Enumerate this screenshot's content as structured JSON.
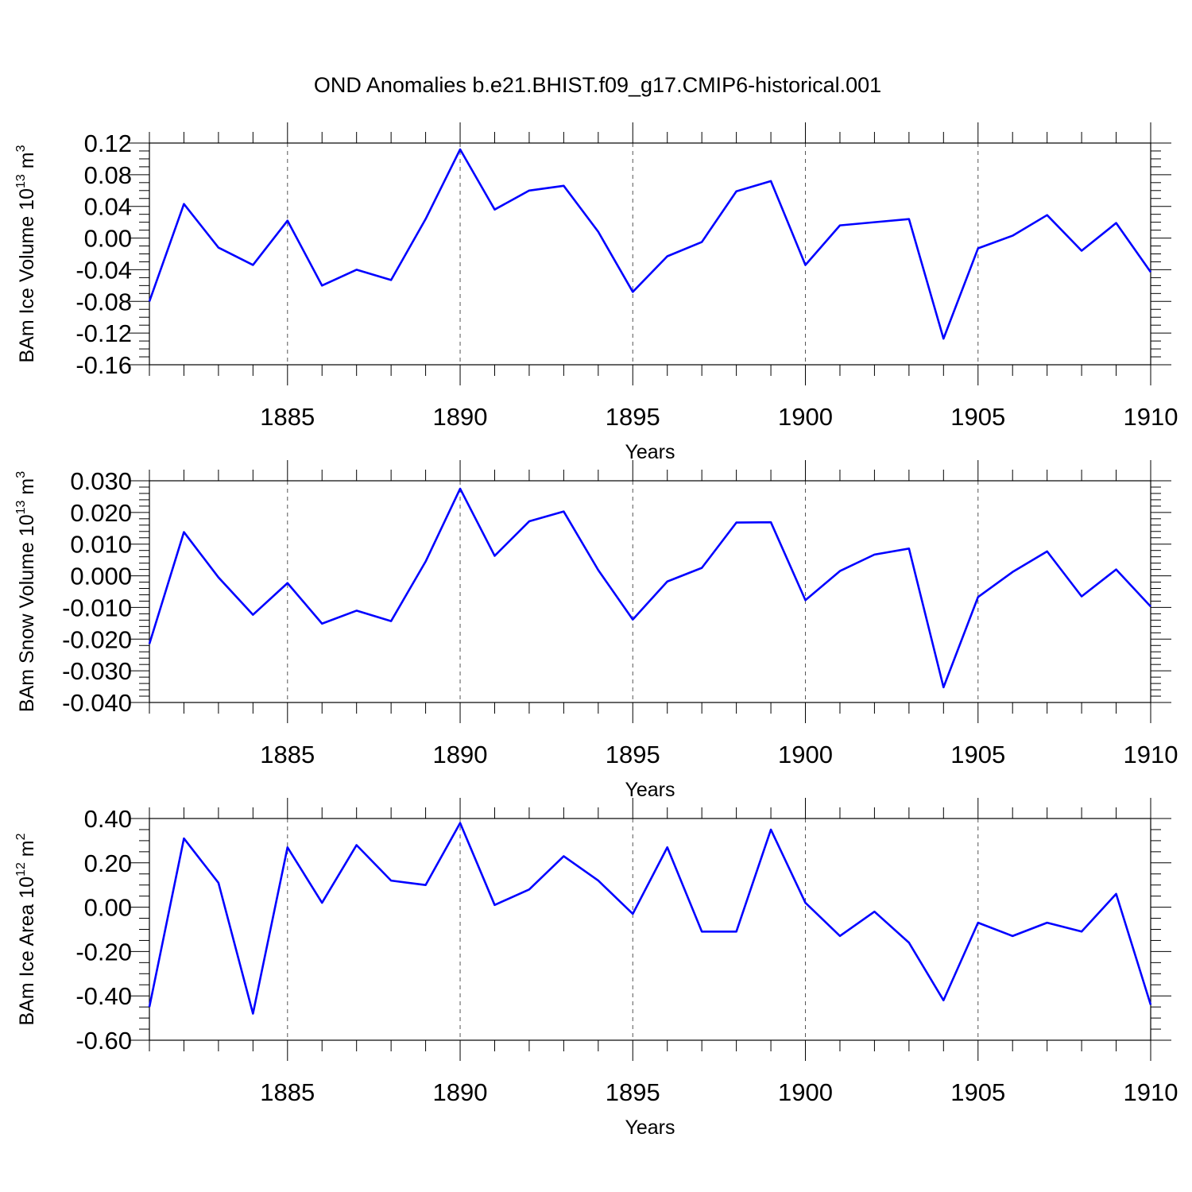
{
  "title": "OND Anomalies b.e21.BHIST.f09_g17.CMIP6-historical.001",
  "colors": {
    "series": "#0000ff",
    "axes": "#000000",
    "grid": "#555555"
  },
  "chart_data": [
    {
      "type": "line",
      "ylabel_main": "BAm Ice Volume 10",
      "ylabel_sup": "13",
      "ylabel_unit": " m",
      "ylabel_unit_sup": "3",
      "xlabel": "Years",
      "xlim": [
        1881,
        1910
      ],
      "ylim": [
        -0.16,
        0.12
      ],
      "yticks": [
        0.12,
        0.08,
        0.04,
        0.0,
        -0.04,
        -0.08,
        -0.12,
        -0.16
      ],
      "ytick_labels": [
        "0.12",
        "0.08",
        "0.04",
        "0.00",
        "-0.04",
        "-0.08",
        "-0.12",
        "-0.16"
      ],
      "xticks": [
        1885,
        1890,
        1895,
        1900,
        1905,
        1910
      ],
      "xtick_labels": [
        "1885",
        "1890",
        "1895",
        "1900",
        "1905",
        "1910"
      ],
      "x": [
        1881,
        1882,
        1883,
        1884,
        1885,
        1886,
        1887,
        1888,
        1889,
        1890,
        1891,
        1892,
        1893,
        1894,
        1895,
        1896,
        1897,
        1898,
        1899,
        1900,
        1901,
        1902,
        1903,
        1904,
        1905,
        1906,
        1907,
        1908,
        1909,
        1910
      ],
      "series": [
        {
          "name": "BAm Ice Volume",
          "values": [
            -0.08,
            0.043,
            -0.012,
            -0.034,
            0.022,
            -0.06,
            -0.04,
            -0.053,
            0.024,
            0.112,
            0.036,
            0.06,
            0.066,
            0.008,
            -0.068,
            -0.023,
            -0.005,
            0.059,
            0.072,
            -0.034,
            0.016,
            0.02,
            0.024,
            -0.127,
            -0.013,
            0.003,
            0.029,
            -0.016,
            0.019,
            -0.043
          ]
        }
      ]
    },
    {
      "type": "line",
      "ylabel_main": "BAm Snow Volume 10",
      "ylabel_sup": "13",
      "ylabel_unit": " m",
      "ylabel_unit_sup": "3",
      "xlabel": "Years",
      "xlim": [
        1881,
        1910
      ],
      "ylim": [
        -0.04,
        0.03
      ],
      "yticks": [
        0.03,
        0.02,
        0.01,
        0.0,
        -0.01,
        -0.02,
        -0.03,
        -0.04
      ],
      "ytick_labels": [
        "0.030",
        "0.020",
        "0.010",
        "0.000",
        "-0.010",
        "-0.020",
        "-0.030",
        "-0.040"
      ],
      "xticks": [
        1885,
        1890,
        1895,
        1900,
        1905,
        1910
      ],
      "xtick_labels": [
        "1885",
        "1890",
        "1895",
        "1900",
        "1905",
        "1910"
      ],
      "x": [
        1881,
        1882,
        1883,
        1884,
        1885,
        1886,
        1887,
        1888,
        1889,
        1890,
        1891,
        1892,
        1893,
        1894,
        1895,
        1896,
        1897,
        1898,
        1899,
        1900,
        1901,
        1902,
        1903,
        1904,
        1905,
        1906,
        1907,
        1908,
        1909,
        1910
      ],
      "series": [
        {
          "name": "BAm Snow Volume",
          "values": [
            -0.0215,
            0.0138,
            -0.0005,
            -0.0123,
            -0.0023,
            -0.0151,
            -0.011,
            -0.0143,
            0.0045,
            0.0275,
            0.0063,
            0.0172,
            0.0203,
            0.0018,
            -0.0138,
            -0.0018,
            0.0025,
            0.0168,
            0.0169,
            -0.0077,
            0.0015,
            0.0067,
            0.0086,
            -0.0352,
            -0.0067,
            0.0012,
            0.0077,
            -0.0065,
            0.002,
            -0.0097
          ]
        }
      ]
    },
    {
      "type": "line",
      "ylabel_main": "BAm Ice Area 10",
      "ylabel_sup": "12",
      "ylabel_unit": " m",
      "ylabel_unit_sup": "2",
      "xlabel": "Years",
      "xlim": [
        1881,
        1910
      ],
      "ylim": [
        -0.6,
        0.4
      ],
      "yticks": [
        0.4,
        0.2,
        0.0,
        -0.2,
        -0.4,
        -0.6
      ],
      "ytick_labels": [
        "0.40",
        "0.20",
        "0.00",
        "-0.20",
        "-0.40",
        "-0.60"
      ],
      "xticks": [
        1885,
        1890,
        1895,
        1900,
        1905,
        1910
      ],
      "xtick_labels": [
        "1885",
        "1890",
        "1895",
        "1900",
        "1905",
        "1910"
      ],
      "x": [
        1881,
        1882,
        1883,
        1884,
        1885,
        1886,
        1887,
        1888,
        1889,
        1890,
        1891,
        1892,
        1893,
        1894,
        1895,
        1896,
        1897,
        1898,
        1899,
        1900,
        1901,
        1902,
        1903,
        1904,
        1905,
        1906,
        1907,
        1908,
        1909,
        1910
      ],
      "series": [
        {
          "name": "BAm Ice Area",
          "values": [
            -0.45,
            0.31,
            0.11,
            -0.48,
            0.27,
            0.02,
            0.28,
            0.12,
            0.1,
            0.38,
            0.01,
            0.08,
            0.23,
            0.12,
            -0.03,
            0.27,
            -0.11,
            -0.11,
            0.35,
            0.02,
            -0.13,
            -0.02,
            -0.16,
            -0.42,
            -0.07,
            -0.13,
            -0.07,
            -0.11,
            0.06,
            -0.44
          ]
        }
      ]
    }
  ]
}
